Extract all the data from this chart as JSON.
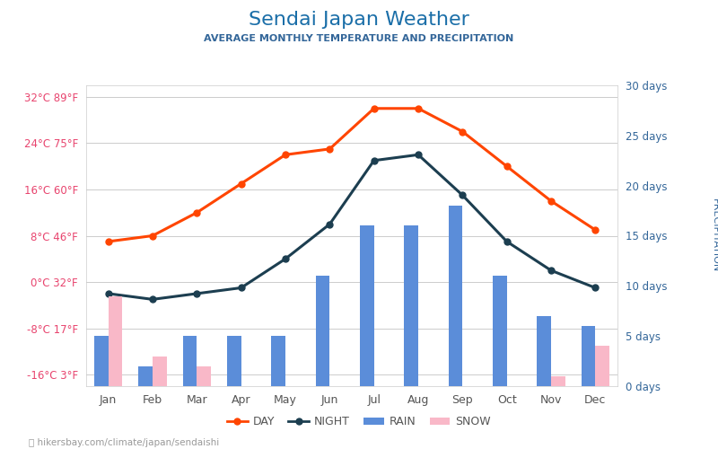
{
  "title": "Sendai Japan Weather",
  "subtitle": "AVERAGE MONTHLY TEMPERATURE AND PRECIPITATION",
  "months": [
    "Jan",
    "Feb",
    "Mar",
    "Apr",
    "May",
    "Jun",
    "Jul",
    "Aug",
    "Sep",
    "Oct",
    "Nov",
    "Dec"
  ],
  "day_temp": [
    7,
    8,
    12,
    17,
    22,
    23,
    30,
    30,
    26,
    20,
    14,
    9
  ],
  "night_temp": [
    -2,
    -3,
    -2,
    -1,
    4,
    10,
    21,
    22,
    15,
    7,
    2,
    -1
  ],
  "rain_days": [
    5,
    2,
    5,
    5,
    5,
    11,
    16,
    16,
    18,
    11,
    7,
    6
  ],
  "snow_days": [
    9,
    3,
    2,
    0,
    0,
    0,
    0,
    0,
    0,
    0,
    1,
    4
  ],
  "temp_ylim": [
    -18,
    34
  ],
  "temp_ticks": [
    -16,
    -8,
    0,
    8,
    16,
    24,
    32
  ],
  "temp_tick_labels_c": [
    "-16°C",
    "-8°C",
    "0°C",
    "8°C",
    "16°C",
    "24°C",
    "32°C"
  ],
  "temp_tick_labels_f": [
    "3°F",
    "17°F",
    "32°F",
    "46°F",
    "60°F",
    "75°F",
    "89°F"
  ],
  "precip_ylim": [
    0,
    30
  ],
  "precip_ticks": [
    0,
    5,
    10,
    15,
    20,
    25,
    30
  ],
  "precip_tick_labels": [
    "0 days",
    "5 days",
    "10 days",
    "15 days",
    "20 days",
    "25 days",
    "30 days"
  ],
  "day_color": "#FF4500",
  "night_color": "#1C3E50",
  "rain_color": "#5B8DD9",
  "snow_color": "#F9B8C8",
  "title_color": "#1a6ea8",
  "subtitle_color": "#336699",
  "left_label_color": "#e8446e",
  "right_label_color": "#336699",
  "temp_ylabel_color": "#888888",
  "precip_ylabel_color": "#336699",
  "background_color": "#ffffff",
  "grid_color": "#cccccc",
  "footer_text": "hikersbay.com/climate/japan/sendaishi",
  "legend_labels": [
    "DAY",
    "NIGHT",
    "RAIN",
    "SNOW"
  ]
}
